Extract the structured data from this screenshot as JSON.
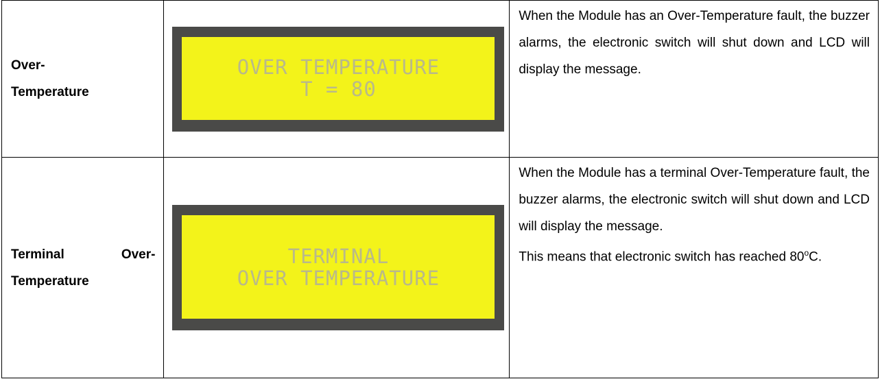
{
  "table": {
    "rows": [
      {
        "name": [
          "Over-",
          "Temperature"
        ],
        "display": [
          "OVER TEMPERATURE",
          "T = 80"
        ],
        "description": [
          "When the Module has an Over-Temperature fault, the buzzer alarms, the electronic switch will shut down and LCD will display the message."
        ]
      },
      {
        "name": [
          "Terminal Over-",
          "Temperature"
        ],
        "display": [
          "TERMINAL",
          "OVER TEMPERATURE"
        ],
        "description": [
          "When the Module has a terminal Over-Temperature fault, the buzzer alarms, the electronic switch will shut down and LCD will display the message."
        ],
        "note": [
          "This means that electronic switch has reached 80",
          "o",
          "C."
        ]
      }
    ]
  }
}
